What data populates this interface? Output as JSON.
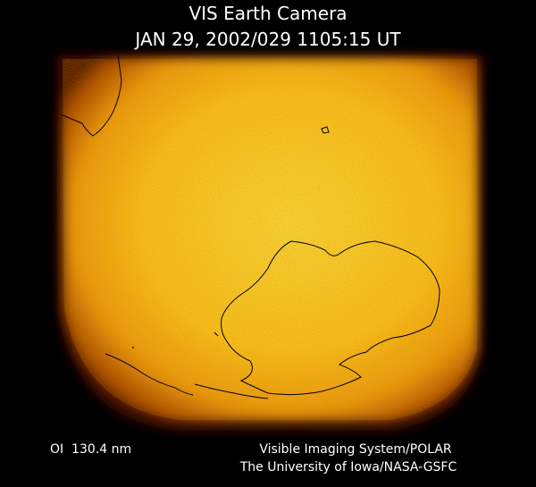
{
  "header": {
    "title": "VIS Earth Camera",
    "subtitle": "JAN 29, 2002/029 1105:15 UT"
  },
  "footer": {
    "filter": "OI  130.4 nm",
    "credit_lines": [
      "Visible Imaging System/POLAR",
      "The University of Iowa/NASA-GSFC"
    ]
  }
}
